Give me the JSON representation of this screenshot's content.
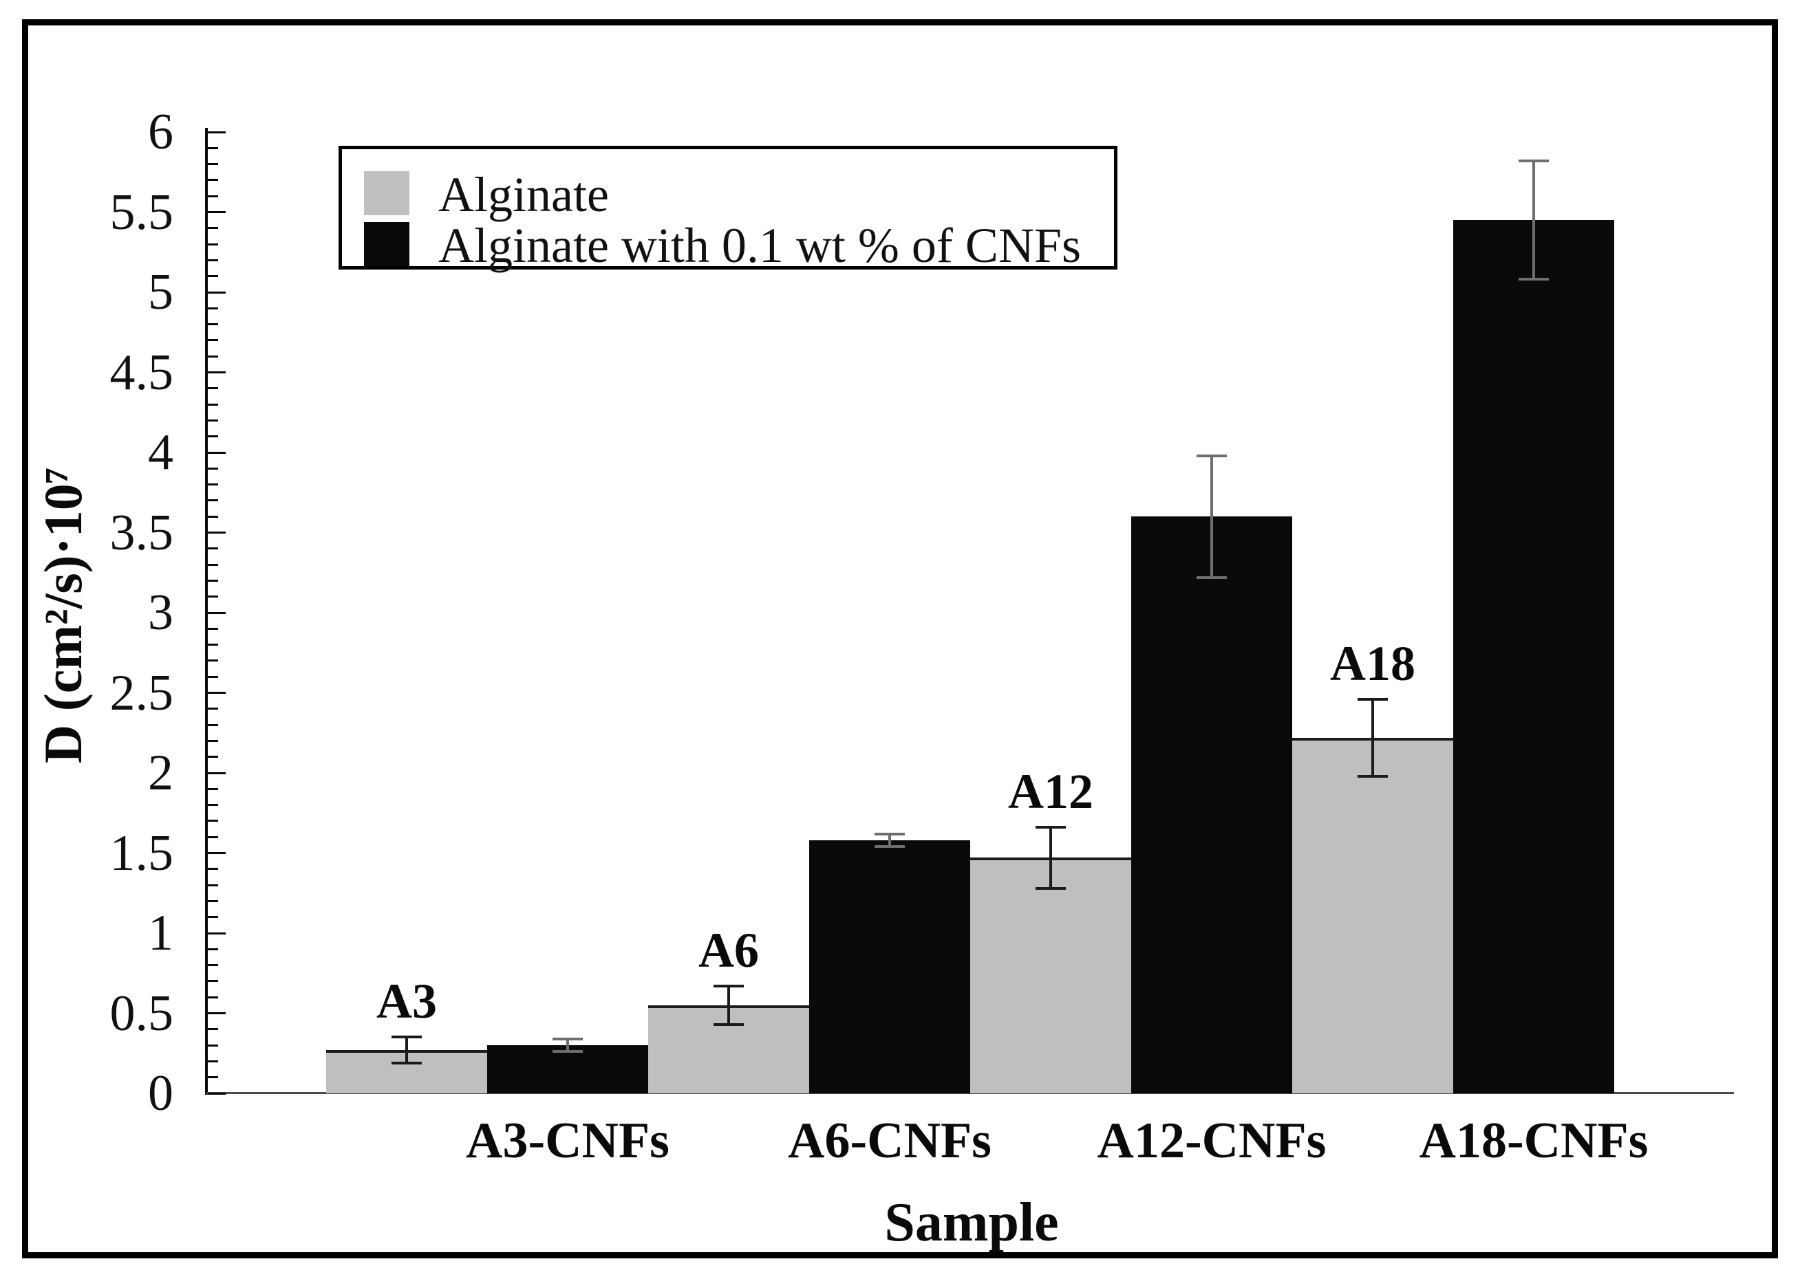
{
  "chart_data": {
    "type": "bar",
    "title": "",
    "xlabel": "Sample",
    "ylabel": "D (cm²/s)·10⁷",
    "ylim": [
      0,
      6
    ],
    "y_major_step": 0.5,
    "y_minor_step": 0.1,
    "y_tick_labels": [
      "0",
      "0.5",
      "1",
      "1.5",
      "2",
      "2.5",
      "3",
      "3.5",
      "4",
      "4.5",
      "5",
      "5.5",
      "6"
    ],
    "categories": [
      "A3-CNFs",
      "A6-CNFs",
      "A12-CNFs",
      "A18-CNFs"
    ],
    "group_annotations": [
      "A3",
      "A6",
      "A12",
      "A18"
    ],
    "grid": false,
    "legend_position": "top-left",
    "series": [
      {
        "name": "Alginate",
        "color": "#bfbfbf",
        "error_bar_color": "#1a1a1a",
        "values": [
          0.27,
          0.55,
          1.47,
          2.22
        ],
        "errors": [
          0.08,
          0.12,
          0.19,
          0.24
        ]
      },
      {
        "name": "Alginate with 0.1 wt % of CNFs",
        "color": "#0a0a0a",
        "error_bar_color": "#6e6e6e",
        "values": [
          0.3,
          1.58,
          3.6,
          5.45
        ],
        "errors": [
          0.04,
          0.04,
          0.38,
          0.37
        ]
      }
    ]
  }
}
